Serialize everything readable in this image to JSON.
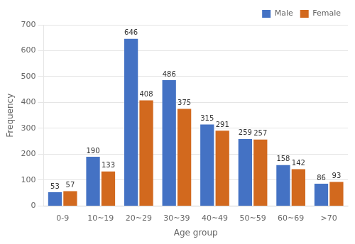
{
  "chart_data": {
    "type": "bar",
    "categories": [
      "0-9",
      "10~19",
      "20~29",
      "30~39",
      "40~49",
      "50~59",
      "60~69",
      ">70"
    ],
    "series": [
      {
        "name": "Male",
        "color": "#4472C4",
        "values": [
          53,
          190,
          646,
          486,
          315,
          259,
          158,
          86
        ]
      },
      {
        "name": "Female",
        "color": "#D2691E",
        "values": [
          57,
          133,
          408,
          375,
          291,
          257,
          142,
          93
        ]
      }
    ],
    "xlabel": "Age group",
    "ylabel": "Frequency",
    "ylim": [
      0,
      700
    ],
    "yticks": [
      0,
      100,
      200,
      300,
      400,
      500,
      600,
      700
    ],
    "grid": true,
    "legend": "upper right",
    "data_labels": true
  }
}
